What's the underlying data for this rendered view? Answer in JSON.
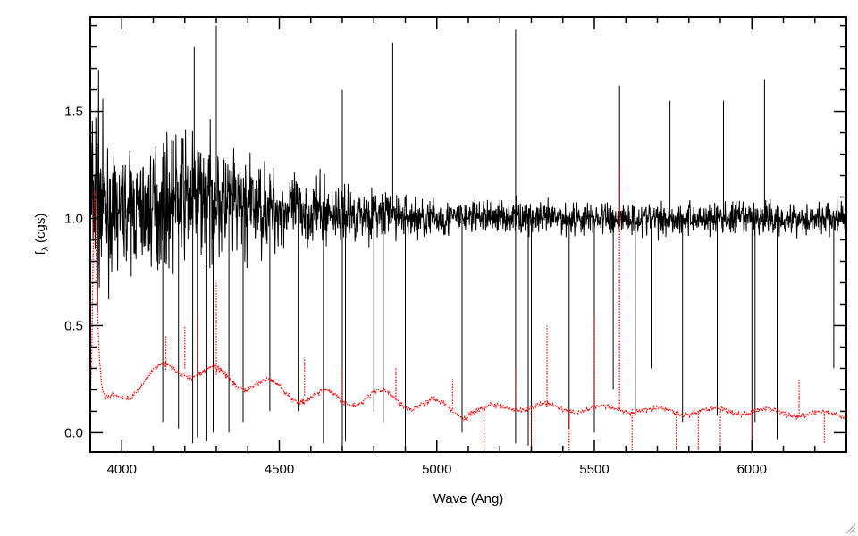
{
  "chart_data": {
    "type": "line",
    "title": "",
    "xlabel": "Wave (Ang)",
    "ylabel": "fλ (cgs)",
    "ylabel_main": "f",
    "ylabel_sub": "λ",
    "ylabel_rest": " (cgs)",
    "xlim": [
      3900,
      6300
    ],
    "ylim": [
      -0.09,
      1.94
    ],
    "x_ticks": [
      4000,
      4500,
      5000,
      5500,
      6000
    ],
    "x_tick_labels": [
      "4000",
      "4500",
      "5000",
      "5500",
      "6000"
    ],
    "y_ticks": [
      0.0,
      0.5,
      1.0,
      1.5
    ],
    "y_tick_labels": [
      "0.0",
      "0.5",
      "1.0",
      "1.5"
    ],
    "grid": false,
    "legend": "none",
    "series": [
      {
        "style": "solid",
        "color": "#000000",
        "x": [
          3900,
          3920,
          3940,
          3960,
          3980,
          4000,
          4050,
          4100,
          4150,
          4200,
          4250,
          4300,
          4350,
          4400,
          4450,
          4500,
          4550,
          4600,
          4650,
          4700,
          4750,
          4800,
          4850,
          4900,
          4950,
          5000,
          5050,
          5100,
          5150,
          5200,
          5250,
          5300,
          5350,
          5400,
          5450,
          5500,
          5550,
          5600,
          5650,
          5700,
          5750,
          5800,
          5850,
          5900,
          5950,
          6000,
          6050,
          6100,
          6150,
          6200,
          6250,
          6300
        ],
        "y": [
          1.05,
          1.1,
          1.05,
          1.0,
          1.02,
          1.05,
          1.03,
          1.05,
          1.08,
          1.1,
          1.1,
          1.08,
          1.06,
          1.05,
          1.05,
          1.04,
          1.04,
          1.03,
          1.03,
          1.02,
          1.02,
          1.02,
          1.02,
          1.01,
          1.0,
          1.0,
          1.0,
          1.01,
          1.01,
          1.01,
          1.01,
          1.0,
          1.0,
          1.0,
          1.0,
          1.0,
          1.0,
          1.0,
          1.0,
          1.0,
          1.0,
          1.0,
          1.0,
          1.0,
          1.0,
          1.0,
          1.0,
          1.0,
          1.0,
          1.0,
          1.0,
          1.0
        ],
        "noise": [
          0.9,
          0.8,
          0.55,
          0.4,
          0.35,
          0.35,
          0.4,
          0.42,
          0.45,
          0.45,
          0.45,
          0.42,
          0.4,
          0.36,
          0.32,
          0.28,
          0.25,
          0.24,
          0.22,
          0.2,
          0.19,
          0.18,
          0.17,
          0.16,
          0.15,
          0.14,
          0.13,
          0.12,
          0.12,
          0.12,
          0.12,
          0.12,
          0.12,
          0.12,
          0.12,
          0.12,
          0.12,
          0.12,
          0.12,
          0.12,
          0.12,
          0.12,
          0.12,
          0.12,
          0.12,
          0.12,
          0.12,
          0.12,
          0.12,
          0.12,
          0.12,
          0.12
        ],
        "absorption_x": [
          4130,
          4180,
          4225,
          4240,
          4270,
          4290,
          4340,
          4385,
          4470,
          4560,
          4640,
          4700,
          4710,
          4800,
          4830,
          4900,
          5080,
          5250,
          5290,
          5300,
          5420,
          5500,
          5560,
          5630,
          5680,
          5780,
          5890,
          6000,
          6010,
          6080,
          6260
        ],
        "absorption_y": [
          0.05,
          0.02,
          -0.05,
          -0.02,
          -0.04,
          0.0,
          0.0,
          0.05,
          0.1,
          0.1,
          -0.05,
          -0.07,
          -0.04,
          0.1,
          0.05,
          -0.06,
          0.0,
          -0.05,
          -0.06,
          -0.06,
          0.02,
          0.0,
          0.2,
          0.08,
          0.3,
          0.05,
          0.08,
          -0.05,
          0.05,
          -0.03,
          0.3
        ],
        "emission_x": [
          4230,
          4300,
          4700,
          4860,
          5250,
          5580,
          5740,
          5910,
          6040
        ],
        "emission_y": [
          1.8,
          1.9,
          1.6,
          1.82,
          1.88,
          1.62,
          1.55,
          1.55,
          1.65
        ]
      },
      {
        "style": "dotted",
        "color": "#ff0000",
        "x": [
          3900,
          3905,
          3910,
          3915,
          3920,
          3925,
          3930,
          3935,
          3940,
          3950,
          3960,
          3975,
          4000,
          4050,
          4100,
          4150,
          4200,
          4250,
          4300,
          4350,
          4400,
          4450,
          4500,
          4550,
          4600,
          4650,
          4700,
          4750,
          4800,
          4850,
          4900,
          4950,
          5000,
          5050,
          5100,
          5150,
          5200,
          5250,
          5300,
          5350,
          5400,
          5450,
          5500,
          5550,
          5600,
          5650,
          5700,
          5750,
          5800,
          5850,
          5900,
          5950,
          6000,
          6050,
          6100,
          6150,
          6200,
          6250,
          6300
        ],
        "y": [
          0.15,
          0.35,
          0.95,
          1.15,
          0.7,
          0.45,
          0.3,
          0.2,
          0.15,
          0.13,
          0.14,
          0.16,
          0.18,
          0.22,
          0.27,
          0.3,
          0.3,
          0.28,
          0.27,
          0.25,
          0.23,
          0.22,
          0.2,
          0.18,
          0.17,
          0.16,
          0.16,
          0.16,
          0.17,
          0.16,
          0.15,
          0.14,
          0.12,
          0.11,
          0.1,
          0.11,
          0.12,
          0.12,
          0.12,
          0.12,
          0.11,
          0.11,
          0.11,
          0.11,
          0.11,
          0.11,
          0.1,
          0.1,
          0.1,
          0.1,
          0.1,
          0.1,
          0.1,
          0.1,
          0.09,
          0.09,
          0.09,
          0.08,
          0.08
        ],
        "spike_x": [
          4140,
          4200,
          4240,
          4300,
          4580,
          4700,
          4870,
          5050,
          5150,
          5250,
          5300,
          5350,
          5420,
          5500,
          5580,
          5620,
          5760,
          5830,
          5900,
          6000,
          6150,
          6230
        ],
        "spike_y": [
          0.45,
          0.5,
          0.55,
          0.7,
          0.35,
          0.3,
          0.3,
          0.25,
          -0.1,
          0.3,
          -0.1,
          0.5,
          -0.1,
          0.55,
          1.25,
          -0.1,
          -0.1,
          -0.1,
          -0.1,
          -0.1,
          0.25,
          -0.05
        ]
      }
    ]
  }
}
